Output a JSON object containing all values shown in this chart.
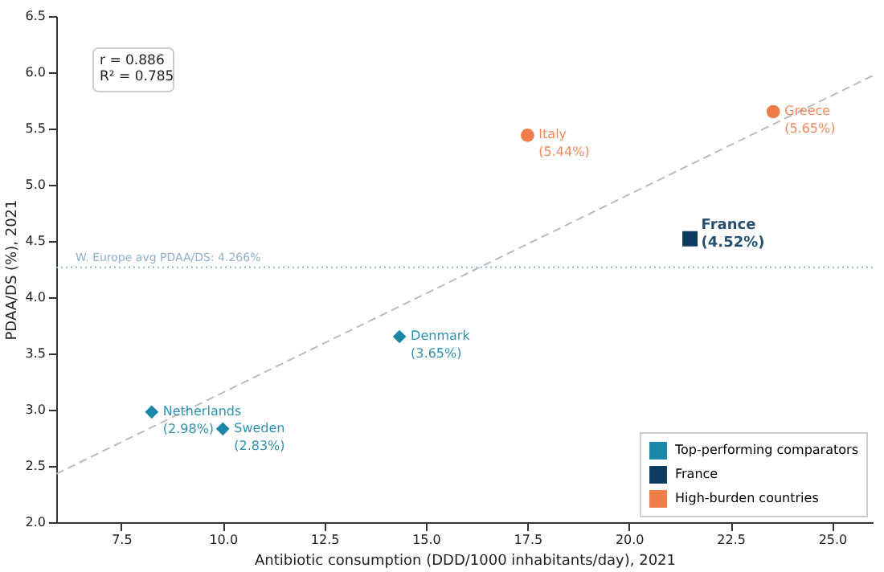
{
  "chart_data": {
    "type": "scatter",
    "xlabel": "Antibiotic consumption (DDD/1000 inhabitants/day), 2021",
    "ylabel": "PDAA/DS (%), 2021",
    "xlim": [
      5.9,
      26
    ],
    "ylim": [
      2.0,
      6.5
    ],
    "xticks": [
      7.5,
      {
        "value": 10,
        "label": "10.0"
      },
      12.5,
      {
        "value": 15,
        "label": "15.0"
      },
      17.5,
      {
        "value": 20,
        "label": "20.0"
      },
      22.5,
      {
        "value": 25,
        "label": "25.0"
      }
    ],
    "yticks": [
      {
        "value": 2,
        "label": "2.0"
      },
      2.5,
      {
        "value": 3,
        "label": "3.0"
      },
      3.5,
      {
        "value": 4,
        "label": "4.0"
      },
      4.5,
      {
        "value": 5,
        "label": "5.0"
      },
      5.5,
      {
        "value": 6,
        "label": "6.0"
      },
      6.5
    ],
    "grid": false,
    "legend": "bottom right",
    "series": [
      {
        "name": "Top-performing comparators",
        "color": "#1a87a8",
        "marker": "diamond",
        "x": [
          8.25,
          10.0,
          14.35
        ],
        "values": [
          2.98,
          2.83,
          3.65
        ]
      },
      {
        "name": "France",
        "color": "#0d3b5e",
        "marker": "square",
        "x": [
          21.5
        ],
        "values": [
          4.52
        ]
      },
      {
        "name": "High-burden countries",
        "color": "#f07c4a",
        "marker": "circle",
        "x": [
          17.5,
          23.55
        ],
        "values": [
          5.44,
          5.65
        ]
      },
      {
        "type": "line",
        "color": "#bbbbbb",
        "line_style": "dashed",
        "x": [
          5.9,
          26
        ],
        "values": [
          2.43,
          5.97
        ]
      }
    ],
    "ref_lines": [
      {
        "axis": "y",
        "value": 4.266,
        "label": "W. Europe avg PDAA/DS: 4.266%",
        "color": "#8fb0c8",
        "line_style": "dotted"
      }
    ],
    "annotations": [
      "r = 0.886",
      "R² = 0.785",
      {
        "text": "Netherlands\n(2.98%)",
        "x": 8.25,
        "y": 2.98
      },
      {
        "text": "Sweden\n(2.83%)",
        "x": 10.0,
        "y": 2.83
      },
      {
        "text": "Denmark\n(3.65%)",
        "x": 14.35,
        "y": 3.65
      },
      {
        "text": "France\n(4.52%)",
        "x": 21.5,
        "y": 4.52
      },
      {
        "text": "Italy\n(5.44%)",
        "x": 17.5,
        "y": 5.44
      },
      {
        "text": "Greece\n(5.65%)",
        "x": 23.55,
        "y": 5.65
      }
    ]
  }
}
